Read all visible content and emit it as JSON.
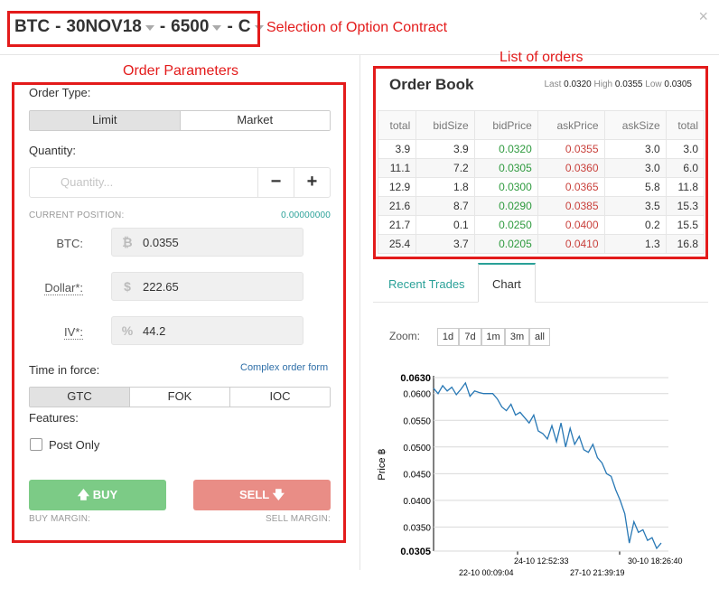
{
  "header": {
    "underlying": "BTC",
    "sep1": "-",
    "expiry": "30NOV18",
    "sep2": "-",
    "strike": "6500",
    "sep3": "-",
    "type": "C",
    "close": "×"
  },
  "annotations": {
    "contract": "Selection of Option Contract",
    "orders": "List of orders",
    "params": "Order Parameters"
  },
  "form": {
    "order_type_label": "Order Type:",
    "order_types": [
      "Limit",
      "Market"
    ],
    "quantity_label": "Quantity:",
    "quantity_placeholder": "Quantity...",
    "minus": "−",
    "plus": "+",
    "current_position_label": "CURRENT POSITION:",
    "current_position_value": "0.00000000",
    "btc_label": "BTC:",
    "btc_icon": "₿",
    "btc_value": "0.0355",
    "dollar_label": "Dollar*:",
    "dollar_icon": "$",
    "dollar_value": "222.65",
    "iv_label": "IV*:",
    "iv_icon": "%",
    "iv_value": "44.2",
    "tif_label": "Time in force:",
    "complex_link": "Complex order form",
    "tif_options": [
      "GTC",
      "FOK",
      "IOC"
    ],
    "features_label": "Features:",
    "post_only_label": "Post Only",
    "buy_label": "BUY",
    "sell_label": "SELL",
    "buy_margin": "BUY MARGIN:",
    "sell_margin": "SELL MARGIN:"
  },
  "orderbook": {
    "title": "Order Book",
    "last_label": "Last",
    "last": "0.0320",
    "high_label": "High",
    "high": "0.0355",
    "low_label": "Low",
    "low": "0.0305",
    "columns": [
      "total",
      "bidSize",
      "bidPrice",
      "askPrice",
      "askSize",
      "total"
    ],
    "rows": [
      [
        "3.9",
        "3.9",
        "0.0320",
        "0.0355",
        "3.0",
        "3.0"
      ],
      [
        "11.1",
        "7.2",
        "0.0305",
        "0.0360",
        "3.0",
        "6.0"
      ],
      [
        "12.9",
        "1.8",
        "0.0300",
        "0.0365",
        "5.8",
        "11.8"
      ],
      [
        "21.6",
        "8.7",
        "0.0290",
        "0.0385",
        "3.5",
        "15.3"
      ],
      [
        "21.7",
        "0.1",
        "0.0250",
        "0.0400",
        "0.2",
        "15.5"
      ],
      [
        "25.4",
        "3.7",
        "0.0205",
        "0.0410",
        "1.3",
        "16.8"
      ]
    ]
  },
  "tabs": {
    "recent_trades": "Recent Trades",
    "chart": "Chart"
  },
  "zoom": {
    "label": "Zoom:",
    "options": [
      "1d",
      "7d",
      "1m",
      "3m",
      "all"
    ]
  },
  "colors": {
    "accent": "#2aa198",
    "buy": "#7ccb86",
    "sell": "#e98d86",
    "annotation": "#e31b1b",
    "line": "#2878b5"
  },
  "chart_data": {
    "type": "line",
    "title": "",
    "xlabel": "",
    "ylabel": "Price ฿",
    "ylim": [
      0.0305,
      0.063
    ],
    "yticks": [
      "0.0630",
      "0.0600",
      "0.0550",
      "0.0500",
      "0.0450",
      "0.0400",
      "0.0350",
      "0.0305"
    ],
    "xticks_upper": [
      "24-10 12:52:33",
      "30-10 18:26:40"
    ],
    "xticks_lower": [
      "22-10 00:09:04",
      "27-10 21:39:19"
    ],
    "x": [
      0,
      1,
      2,
      3,
      4,
      5,
      6,
      7,
      8,
      9,
      10,
      11,
      12,
      13,
      14,
      15,
      16,
      17,
      18,
      19,
      20,
      21,
      22,
      23,
      24,
      25,
      26,
      27,
      28,
      29,
      30,
      31,
      32,
      33,
      34,
      35,
      36,
      37,
      38,
      39,
      40,
      41,
      42,
      43,
      44,
      45,
      46,
      47,
      48,
      49,
      50
    ],
    "series": [
      {
        "values": [
          0.061,
          0.06,
          0.0615,
          0.0605,
          0.0612,
          0.0598,
          0.0608,
          0.062,
          0.0595,
          0.0605,
          0.0602,
          0.06,
          0.06,
          0.06,
          0.059,
          0.0575,
          0.0568,
          0.058,
          0.056,
          0.0565,
          0.0555,
          0.0545,
          0.056,
          0.053,
          0.0525,
          0.0515,
          0.054,
          0.051,
          0.0545,
          0.05,
          0.0535,
          0.0505,
          0.052,
          0.0495,
          0.049,
          0.0505,
          0.048,
          0.047,
          0.045,
          0.0445,
          0.042,
          0.04,
          0.0375,
          0.032,
          0.036,
          0.034,
          0.0345,
          0.0325,
          0.033,
          0.031,
          0.032
        ]
      }
    ]
  }
}
